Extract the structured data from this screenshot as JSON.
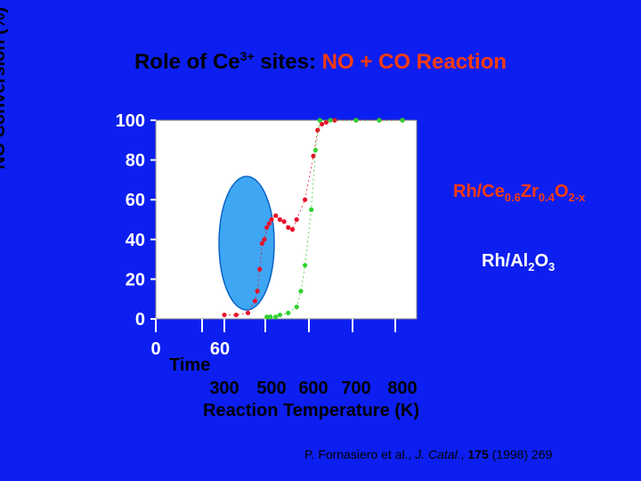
{
  "title": {
    "prefix": "Role of Ce",
    "sup": "3+",
    "middle": " sites: ",
    "highlight": "NO + CO Reaction"
  },
  "ylabel": "NO Conversion (%)",
  "xlabel": "Reaction Temperature (K)",
  "time_label": "Time",
  "time_ticks": [
    "0",
    "60"
  ],
  "legend": {
    "rh_cezr": {
      "parts": [
        "Rh/Ce",
        "0.6",
        "Zr",
        "0.4",
        "O",
        "2-x"
      ]
    },
    "rh_al": {
      "parts": [
        "Rh/Al",
        "2",
        "O",
        "3"
      ]
    }
  },
  "citation": {
    "authors": "P. Fornasiero et al., ",
    "journal": "J. Catal.",
    "sep": ", ",
    "volume": "175",
    "rest": " (1998) 269"
  },
  "colors": {
    "background": "#0c1ff0",
    "plot_bg": "#ffffff",
    "rh_cezr": "#e8102a",
    "rh_al": "#2fd12f",
    "ellipse": "#3ea6f2"
  },
  "chart_data": {
    "type": "scatter",
    "ylabel": "NO Conversion (%)",
    "xlabel": "Reaction Temperature (K)",
    "ylim": [
      0,
      100
    ],
    "y_ticks": [
      "0",
      "20",
      "40",
      "60",
      "80",
      "100"
    ],
    "x_ticks": [
      "300",
      "500",
      "600",
      "700",
      "800"
    ],
    "x_tick_values": [
      300,
      500,
      600,
      700,
      800
    ],
    "xlim": [
      300,
      800
    ],
    "x_ticks_positions_note": "",
    "series": [
      {
        "name": "Rh/Ce0.6Zr0.4O2-x",
        "color": "#e8102a",
        "points": [
          [
            300,
            2
          ],
          [
            350,
            2
          ],
          [
            400,
            3
          ],
          [
            430,
            9
          ],
          [
            440,
            14
          ],
          [
            450,
            25
          ],
          [
            460,
            38
          ],
          [
            470,
            40
          ],
          [
            480,
            46
          ],
          [
            490,
            48
          ],
          [
            500,
            50
          ],
          [
            510,
            52
          ],
          [
            520,
            50
          ],
          [
            530,
            49
          ],
          [
            540,
            46
          ],
          [
            550,
            45
          ],
          [
            560,
            50
          ],
          [
            580,
            60
          ],
          [
            600,
            82
          ],
          [
            610,
            95
          ],
          [
            620,
            98
          ],
          [
            630,
            99
          ],
          [
            650,
            100
          ],
          [
            700,
            100
          ],
          [
            750,
            100
          ],
          [
            800,
            100
          ]
        ]
      },
      {
        "name": "Rh/Al2O3",
        "color": "#2fd12f",
        "points": [
          [
            480,
            1
          ],
          [
            495,
            1
          ],
          [
            510,
            1
          ],
          [
            520,
            2
          ],
          [
            540,
            3
          ],
          [
            560,
            6
          ],
          [
            570,
            14
          ],
          [
            580,
            27
          ],
          [
            595,
            55
          ],
          [
            605,
            85
          ],
          [
            615,
            100
          ],
          [
            640,
            100
          ],
          [
            700,
            100
          ],
          [
            750,
            100
          ],
          [
            800,
            100
          ]
        ]
      }
    ]
  }
}
